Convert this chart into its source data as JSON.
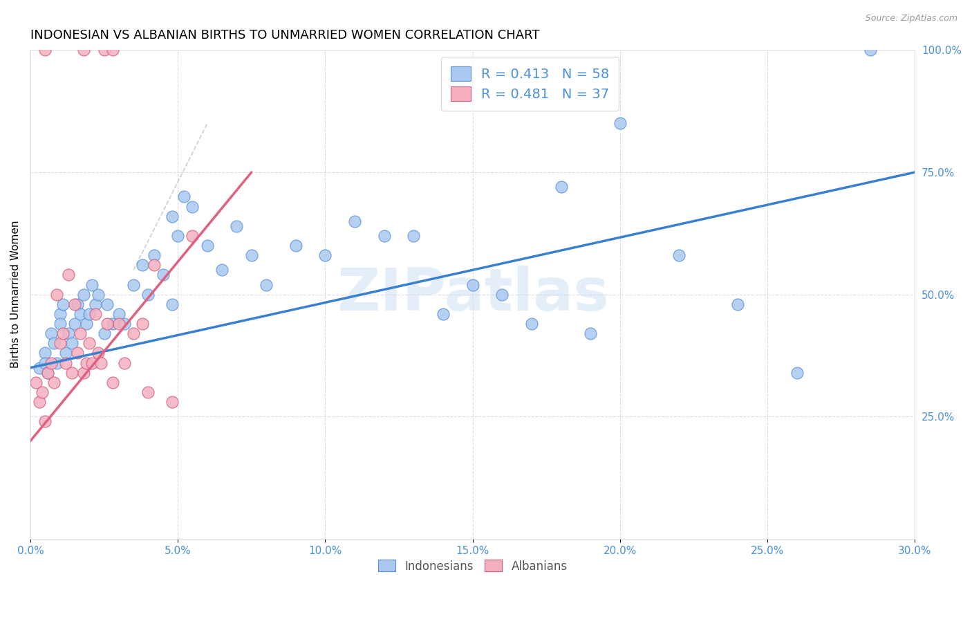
{
  "title": "INDONESIAN VS ALBANIAN BIRTHS TO UNMARRIED WOMEN CORRELATION CHART",
  "source": "Source: ZipAtlas.com",
  "ylabel": "Births to Unmarried Women",
  "watermark": "ZIPatlas",
  "R_indonesian": "0.413",
  "N_indonesian": "58",
  "R_albanian": "0.481",
  "N_albanian": "37",
  "color_indo_fill": "#aac8f0",
  "color_indo_edge": "#5590d8",
  "color_alba_fill": "#f5b0c0",
  "color_alba_edge": "#d05878",
  "color_tl_indo": "#3a80d0",
  "color_tl_alba": "#e06080",
  "color_text_blue": "#4a90d9",
  "color_watermark": "#cce0f5",
  "color_grid": "#dddddd",
  "xmin": 0.0,
  "xmax": 30.0,
  "ymin": 0.0,
  "ymax": 100.0,
  "yticks": [
    25,
    50,
    75,
    100
  ],
  "xticks": [
    0,
    5,
    10,
    15,
    20,
    25,
    30
  ],
  "indo_x": [
    0.3,
    0.5,
    0.5,
    0.6,
    0.7,
    0.8,
    0.9,
    1.0,
    1.0,
    1.1,
    1.2,
    1.3,
    1.4,
    1.5,
    1.6,
    1.7,
    1.8,
    1.9,
    2.0,
    2.1,
    2.2,
    2.3,
    2.5,
    2.6,
    2.8,
    3.0,
    3.2,
    3.5,
    3.8,
    4.0,
    4.2,
    4.5,
    4.8,
    5.0,
    5.5,
    6.0,
    6.5,
    7.0,
    7.5,
    8.0,
    9.0,
    10.0,
    11.0,
    12.0,
    14.0,
    15.0,
    16.0,
    17.0,
    18.0,
    20.0,
    22.0,
    24.0,
    26.0,
    28.5,
    5.2,
    4.8,
    13.0,
    19.0
  ],
  "indo_y": [
    35,
    38,
    36,
    34,
    42,
    40,
    36,
    46,
    44,
    48,
    38,
    42,
    40,
    44,
    48,
    46,
    50,
    44,
    46,
    52,
    48,
    50,
    42,
    48,
    44,
    46,
    44,
    52,
    56,
    50,
    58,
    54,
    48,
    62,
    68,
    60,
    55,
    64,
    58,
    52,
    60,
    58,
    65,
    62,
    46,
    52,
    50,
    44,
    72,
    85,
    58,
    48,
    34,
    100,
    70,
    66,
    62,
    42
  ],
  "alba_x": [
    0.2,
    0.3,
    0.4,
    0.5,
    0.6,
    0.7,
    0.8,
    0.9,
    1.0,
    1.1,
    1.2,
    1.3,
    1.4,
    1.5,
    1.6,
    1.7,
    1.8,
    1.9,
    2.0,
    2.1,
    2.2,
    2.3,
    2.4,
    2.6,
    2.8,
    3.0,
    3.2,
    3.5,
    3.8,
    4.0,
    4.2,
    4.8,
    5.5,
    1.8,
    2.5,
    2.8,
    0.5
  ],
  "alba_y": [
    32,
    28,
    30,
    24,
    34,
    36,
    32,
    50,
    40,
    42,
    36,
    54,
    34,
    48,
    38,
    42,
    34,
    36,
    40,
    36,
    46,
    38,
    36,
    44,
    32,
    44,
    36,
    42,
    44,
    30,
    56,
    28,
    62,
    100,
    100,
    100,
    100
  ],
  "indo_trend_x0": 0.0,
  "indo_trend_x1": 30.0,
  "indo_trend_y0": 35.0,
  "indo_trend_y1": 75.0,
  "alba_trend_x0": 0.0,
  "alba_trend_x1": 7.5,
  "alba_trend_y0": 20.0,
  "alba_trend_y1": 75.0
}
